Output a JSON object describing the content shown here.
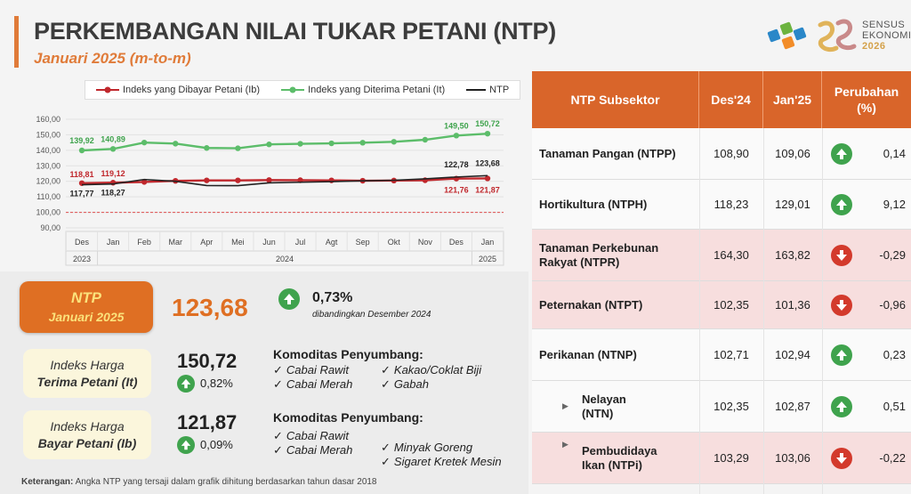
{
  "header": {
    "title": "PERKEMBANGAN NILAI TUKAR PETANI (NTP)",
    "subtitle": "Januari 2025 (m-to-m)"
  },
  "logos": {
    "se_line1": "SENSUS",
    "se_line2": "EKONOMI",
    "se_year": "2026"
  },
  "chart_data": {
    "type": "line",
    "categories": [
      "Des",
      "Jan",
      "Feb",
      "Mar",
      "Apr",
      "Mei",
      "Jun",
      "Jul",
      "Agt",
      "Sep",
      "Okt",
      "Nov",
      "Des",
      "Jan"
    ],
    "year_labels": [
      "2023",
      "2024",
      "2025"
    ],
    "ylim": [
      90,
      160
    ],
    "yticks": [
      "160,00",
      "150,00",
      "140,00",
      "130,00",
      "120,00",
      "110,00",
      "100,00",
      "90,00"
    ],
    "reference_line": 100,
    "series": [
      {
        "name": "Indeks yang Dibayar Petani (Ib)",
        "color": "#c0282d",
        "values": [
          118.81,
          119.12,
          119.6,
          120.3,
          120.6,
          120.6,
          120.8,
          120.7,
          120.6,
          120.4,
          120.5,
          120.7,
          121.76,
          121.87
        ]
      },
      {
        "name": "Indeks yang Diterima Petani (It)",
        "color": "#5cbd6a",
        "values": [
          139.92,
          140.89,
          145.0,
          144.3,
          141.5,
          141.3,
          143.8,
          144.2,
          144.5,
          144.9,
          145.5,
          146.8,
          149.5,
          150.72
        ]
      },
      {
        "name": "NTP",
        "color": "#222222",
        "values": [
          117.77,
          118.27,
          121.2,
          120.0,
          117.3,
          117.2,
          119.0,
          119.4,
          119.8,
          120.3,
          120.7,
          121.6,
          122.78,
          123.68
        ]
      }
    ],
    "data_labels": [
      {
        "series": 1,
        "index": 0,
        "text": "139,92"
      },
      {
        "series": 1,
        "index": 1,
        "text": "140,89"
      },
      {
        "series": 1,
        "index": 12,
        "text": "149,50"
      },
      {
        "series": 1,
        "index": 13,
        "text": "150,72"
      },
      {
        "series": 0,
        "index": 0,
        "text": "118,81"
      },
      {
        "series": 0,
        "index": 1,
        "text": "119,12"
      },
      {
        "series": 0,
        "index": 12,
        "text": "121,76"
      },
      {
        "series": 0,
        "index": 13,
        "text": "121,87"
      },
      {
        "series": 2,
        "index": 0,
        "text": "117,77"
      },
      {
        "series": 2,
        "index": 1,
        "text": "118,27"
      },
      {
        "series": 2,
        "index": 12,
        "text": "122,78"
      },
      {
        "series": 2,
        "index": 13,
        "text": "123,68"
      }
    ]
  },
  "ntp_summary": {
    "label_line1": "NTP",
    "label_line2": "Januari 2025",
    "value": "123,68",
    "change": "0,73%",
    "comparison": "dibandingkan Desember 2024"
  },
  "it_summary": {
    "label_line1": "Indeks Harga",
    "label_line2": "Terima Petani (It)",
    "value": "150,72",
    "change": "0,82%",
    "komoditas_title": "Komoditas Penyumbang:",
    "komoditas": [
      "Cabai Rawit",
      "Cabai Merah",
      "Kakao/Coklat Biji",
      "Gabah"
    ]
  },
  "ib_summary": {
    "label_line1": "Indeks Harga",
    "label_line2": "Bayar Petani (Ib)",
    "value": "121,87",
    "change": "0,09%",
    "komoditas_title": "Komoditas Penyumbang:",
    "komoditas": [
      "Cabai Rawit",
      "Cabai Merah",
      "Minyak Goreng",
      "Sigaret Kretek Mesin"
    ]
  },
  "note": {
    "label": "Keterangan:",
    "text": " Angka NTP yang tersaji dalam grafik dihitung berdasarkan tahun dasar 2018"
  },
  "table": {
    "headers": [
      "NTP Subsektor",
      "Des'24",
      "Jan'25",
      "Perubahan (%)"
    ],
    "rows": [
      {
        "name": "Tanaman Pangan (NTPP)",
        "des": "108,90",
        "jan": "109,06",
        "chg": "0,14",
        "dir": "up"
      },
      {
        "name": "Hortikultura (NTPH)",
        "des": "118,23",
        "jan": "129,01",
        "chg": "9,12",
        "dir": "up"
      },
      {
        "name": "Tanaman Perkebunan Rakyat (NTPR)",
        "des": "164,30",
        "jan": "163,82",
        "chg": "-0,29",
        "dir": "down"
      },
      {
        "name": "Peternakan (NTPT)",
        "des": "102,35",
        "jan": "101,36",
        "chg": "-0,96",
        "dir": "down"
      },
      {
        "name": "Perikanan (NTNP)",
        "des": "102,71",
        "jan": "102,94",
        "chg": "0,23",
        "dir": "up"
      },
      {
        "name": "Nelayan (NTN)",
        "des": "102,35",
        "jan": "102,87",
        "chg": "0,51",
        "dir": "up"
      },
      {
        "name": "Pembudidaya Ikan (NTPi)",
        "des": "103,29",
        "jan": "103,06",
        "chg": "-0,22",
        "dir": "down"
      }
    ]
  }
}
